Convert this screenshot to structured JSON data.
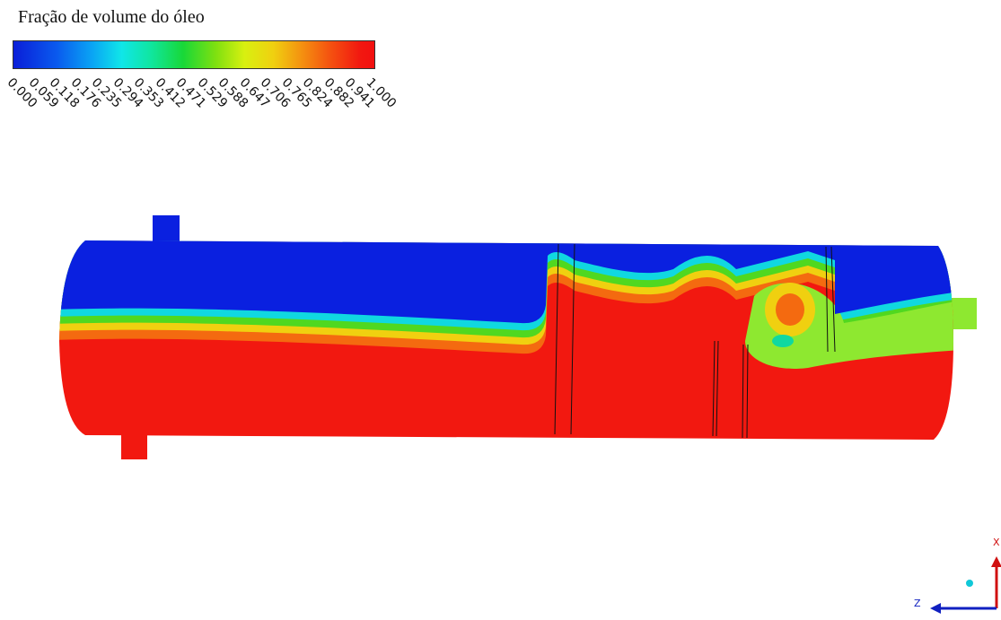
{
  "legend": {
    "title": "Fração de volume do óleo",
    "ticks": [
      "0.000",
      "0.059",
      "0.118",
      "0.176",
      "0.235",
      "0.294",
      "0.353",
      "0.412",
      "0.471",
      "0.529",
      "0.588",
      "0.647",
      "0.706",
      "0.765",
      "0.824",
      "0.882",
      "0.941",
      "1.000"
    ]
  },
  "axes": {
    "z": "Z",
    "x": "X"
  }
}
